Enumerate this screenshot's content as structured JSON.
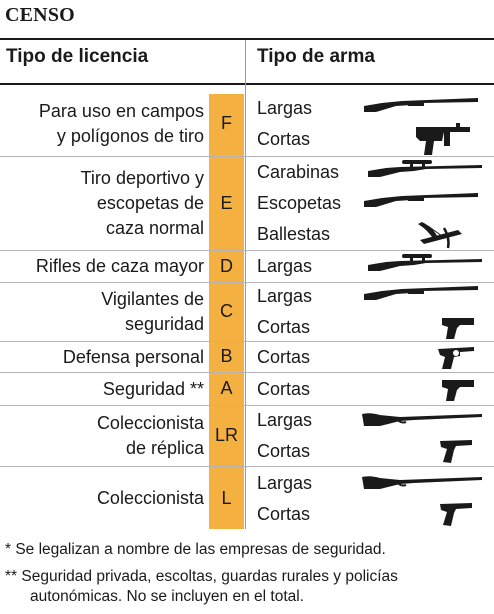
{
  "title": "CENSO",
  "headers": {
    "left": "Tipo de licencia",
    "right": "Tipo de arma"
  },
  "rows": [
    {
      "desc": [
        "Para uso en campos",
        "y polígonos de tiro"
      ],
      "class": "F",
      "weapons": [
        "Largas",
        "Cortas"
      ]
    },
    {
      "desc": [
        "Tiro deportivo y",
        "escopetas de",
        "caza normal"
      ],
      "class": "E",
      "weapons": [
        "Carabinas",
        "Escopetas",
        "Ballestas"
      ]
    },
    {
      "desc": [
        "Rifles de caza mayor"
      ],
      "class": "D",
      "weapons": [
        "Largas"
      ]
    },
    {
      "desc": [
        "Vigilantes de",
        "seguridad"
      ],
      "class": "C",
      "weapons": [
        "Largas",
        "Cortas"
      ]
    },
    {
      "desc": [
        "Defensa personal"
      ],
      "class": "B",
      "weapons": [
        "Cortas"
      ]
    },
    {
      "desc": [
        "Seguridad **"
      ],
      "class": "A",
      "weapons": [
        "Cortas"
      ]
    },
    {
      "desc": [
        "Coleccionista",
        "de réplica"
      ],
      "class": "LR",
      "weapons": [
        "Largas",
        "Cortas"
      ]
    },
    {
      "desc": [
        "Coleccionista"
      ],
      "class": "L",
      "weapons": [
        "Largas",
        "Cortas"
      ]
    }
  ],
  "icons": {
    "F": [
      "shotgun-icon",
      "assault-pistol-icon"
    ],
    "E": [
      "scoped-rifle-icon",
      "shotgun-icon",
      "crossbow-icon"
    ],
    "D": [
      "scoped-rifle-icon"
    ],
    "C": [
      "shotgun-icon",
      "pistol-icon"
    ],
    "B": [
      "revolver-icon"
    ],
    "A": [
      "pistol-icon"
    ],
    "LR": [
      "antique-rifle-icon",
      "antique-pistol-icon"
    ],
    "L": [
      "antique-rifle-icon",
      "antique-pistol-icon"
    ]
  },
  "notes": [
    "* Se legalizan a nombre de las empresas de seguridad.",
    "** Seguridad privada, escoltas, guardas rurales y policías",
    "autonómicas. No se incluyen en el total."
  ],
  "colors": {
    "accent": "#f4b142",
    "text": "#1a1a1a",
    "rule": "#b5b5b5"
  }
}
